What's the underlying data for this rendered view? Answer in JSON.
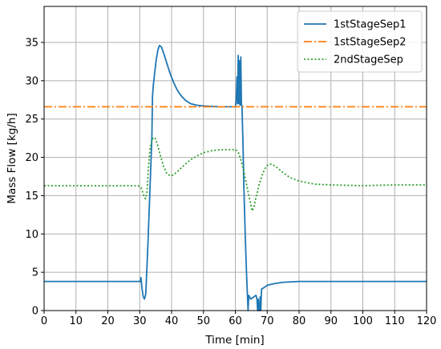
{
  "chart_data": {
    "type": "line",
    "title": "",
    "xlabel": "Time [min]",
    "ylabel": "Mass Flow [kg/h]",
    "xlim": [
      0,
      120
    ],
    "ylim": [
      0,
      39.7
    ],
    "xticks": [
      0,
      10,
      20,
      30,
      40,
      50,
      60,
      70,
      80,
      90,
      100,
      110,
      120
    ],
    "yticks": [
      0,
      5,
      10,
      15,
      20,
      25,
      30,
      35
    ],
    "grid": true,
    "legend_position": "top-right",
    "series": [
      {
        "name": "1stStageSep1",
        "color": "#1f77b4",
        "linestyle": "solid",
        "points": [
          [
            0,
            3.8
          ],
          [
            29.8,
            3.8
          ],
          [
            30.2,
            3.8
          ],
          [
            30.4,
            4.3
          ],
          [
            30.7,
            3.0
          ],
          [
            31.1,
            1.8
          ],
          [
            31.5,
            1.5
          ],
          [
            31.9,
            2.2
          ],
          [
            32.2,
            5.0
          ],
          [
            32.6,
            9.0
          ],
          [
            33.0,
            13.5
          ],
          [
            33.4,
            18.0
          ],
          [
            33.8,
            22.5
          ],
          [
            34.0,
            28.0
          ],
          [
            34.3,
            29.5
          ],
          [
            34.7,
            31.0
          ],
          [
            35.2,
            32.8
          ],
          [
            35.7,
            34.0
          ],
          [
            36.2,
            34.6
          ],
          [
            36.8,
            34.4
          ],
          [
            37.5,
            33.6
          ],
          [
            38.5,
            32.3
          ],
          [
            39.5,
            31.0
          ],
          [
            40.5,
            29.9
          ],
          [
            41.5,
            29.0
          ],
          [
            42.5,
            28.3
          ],
          [
            43.5,
            27.8
          ],
          [
            44.5,
            27.4
          ],
          [
            46,
            27.0
          ],
          [
            48,
            26.8
          ],
          [
            50,
            26.7
          ],
          [
            55,
            26.6
          ],
          [
            60,
            26.6
          ],
          [
            60.3,
            27.5
          ],
          [
            60.5,
            30.5
          ],
          [
            60.7,
            27.0
          ],
          [
            60.9,
            33.3
          ],
          [
            61.1,
            27.0
          ],
          [
            61.3,
            32.6
          ],
          [
            61.5,
            26.8
          ],
          [
            61.7,
            33.1
          ],
          [
            61.9,
            27.0
          ],
          [
            62.1,
            26.6
          ],
          [
            62.4,
            22.0
          ],
          [
            62.7,
            16.0
          ],
          [
            63.1,
            10.0
          ],
          [
            63.5,
            5.0
          ],
          [
            63.8,
            2.0
          ],
          [
            64.0,
            0.0
          ],
          [
            64.2,
            2.0
          ],
          [
            64.8,
            1.5
          ],
          [
            65.5,
            1.7
          ],
          [
            66.5,
            2.0
          ],
          [
            66.8,
            1.5
          ],
          [
            67.0,
            0.0
          ],
          [
            67.2,
            1.5
          ],
          [
            67.4,
            0.0
          ],
          [
            67.6,
            0.0
          ],
          [
            67.8,
            1.8
          ],
          [
            68.0,
            0.0
          ],
          [
            68.2,
            2.8
          ],
          [
            69,
            3.0
          ],
          [
            70,
            3.3
          ],
          [
            72,
            3.5
          ],
          [
            75,
            3.7
          ],
          [
            80,
            3.8
          ],
          [
            120,
            3.8
          ]
        ]
      },
      {
        "name": "1stStageSep2",
        "color": "#ff7f0e",
        "linestyle": "dashdot",
        "points": [
          [
            0,
            26.6
          ],
          [
            120,
            26.6
          ]
        ]
      },
      {
        "name": "2ndStageSep",
        "color": "#2ca02c",
        "linestyle": "dotted",
        "points": [
          [
            0,
            16.3
          ],
          [
            29.5,
            16.3
          ],
          [
            30.5,
            16.0
          ],
          [
            31.3,
            15.0
          ],
          [
            31.8,
            14.6
          ],
          [
            32.3,
            15.5
          ],
          [
            32.7,
            18.5
          ],
          [
            33.2,
            21.0
          ],
          [
            33.8,
            22.2
          ],
          [
            34.3,
            22.6
          ],
          [
            34.8,
            22.5
          ],
          [
            35.5,
            21.8
          ],
          [
            36.5,
            20.2
          ],
          [
            37.5,
            18.8
          ],
          [
            38.5,
            17.9
          ],
          [
            39.5,
            17.6
          ],
          [
            40.5,
            17.7
          ],
          [
            42,
            18.2
          ],
          [
            44,
            19.0
          ],
          [
            46,
            19.7
          ],
          [
            48,
            20.2
          ],
          [
            50,
            20.6
          ],
          [
            53,
            20.9
          ],
          [
            56,
            21.0
          ],
          [
            60,
            21.0
          ],
          [
            60.8,
            20.8
          ],
          [
            61.5,
            20.0
          ],
          [
            62.5,
            18.5
          ],
          [
            63.5,
            16.5
          ],
          [
            64.5,
            14.5
          ],
          [
            65.3,
            13.0
          ],
          [
            65.8,
            13.5
          ],
          [
            66.5,
            14.8
          ],
          [
            67.5,
            16.5
          ],
          [
            68.5,
            17.8
          ],
          [
            69.5,
            18.7
          ],
          [
            70.5,
            19.1
          ],
          [
            71.5,
            19.1
          ],
          [
            73,
            18.7
          ],
          [
            75,
            18.0
          ],
          [
            77,
            17.4
          ],
          [
            80,
            16.9
          ],
          [
            85,
            16.5
          ],
          [
            90,
            16.4
          ],
          [
            100,
            16.3
          ],
          [
            110,
            16.4
          ],
          [
            120,
            16.4
          ]
        ]
      }
    ]
  }
}
